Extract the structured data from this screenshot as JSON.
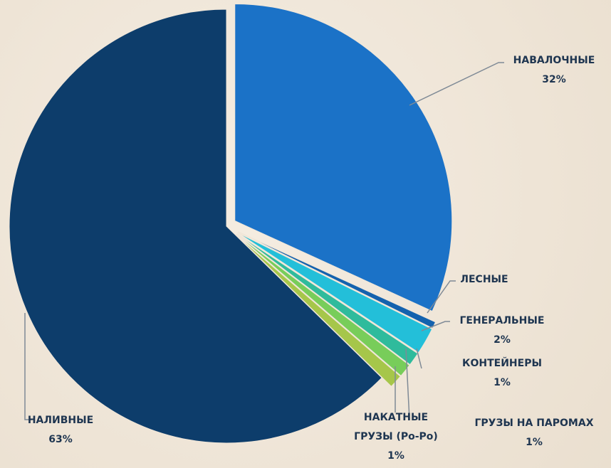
{
  "chart_data": {
    "type": "pie",
    "categories": [
      "НАВАЛОЧНЫЕ",
      "ЛЕСНЫЕ",
      "ГЕНЕРАЛЬНЫЕ",
      "КОНТЕЙНЕРЫ",
      "ГРУЗЫ НА ПАРОМАХ",
      "НАКАТНЫЕ ГРУЗЫ (Ро-Ро)",
      "НАЛИВНЫЕ"
    ],
    "values": [
      32,
      0.5,
      2,
      1,
      1,
      1,
      63
    ],
    "value_labels": [
      "32%",
      null,
      "2%",
      "1%",
      "1%",
      "1%",
      "63%"
    ],
    "colors": [
      "#1b72c7",
      "#1462ae",
      "#23bfd9",
      "#2fbb9c",
      "#78cd5a",
      "#a6c64a",
      "#0d3d6b"
    ]
  }
}
